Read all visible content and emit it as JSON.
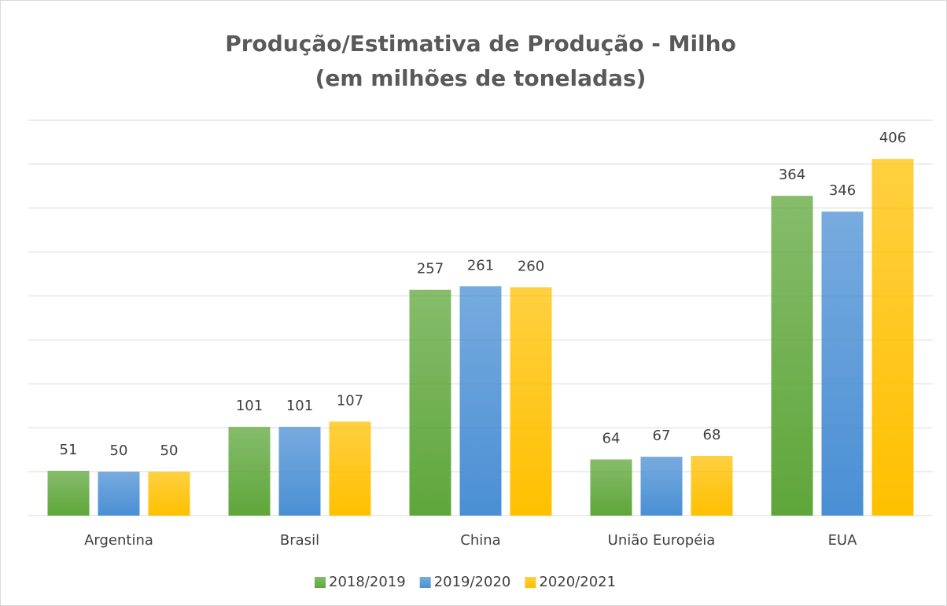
{
  "chart_data": {
    "type": "bar",
    "title": "Produção/Estimativa de Produção - Milho",
    "subtitle": "(em milhões de toneladas)",
    "categories": [
      "Argentina",
      "Brasil",
      "China",
      "União Européia",
      "EUA"
    ],
    "series": [
      {
        "name": "2018/2019",
        "color": "#5ea63a",
        "values": [
          51,
          101,
          257,
          64,
          364
        ]
      },
      {
        "name": "2019/2020",
        "color": "#4a8fd4",
        "values": [
          50,
          101,
          261,
          67,
          346
        ]
      },
      {
        "name": "2020/2021",
        "color": "#ffc000",
        "values": [
          50,
          107,
          260,
          68,
          406
        ]
      }
    ],
    "ylim": [
      0,
      450
    ],
    "yticks": [
      0,
      50,
      100,
      150,
      200,
      250,
      300,
      350,
      400,
      450
    ],
    "grid": true,
    "legend": "bottom"
  }
}
